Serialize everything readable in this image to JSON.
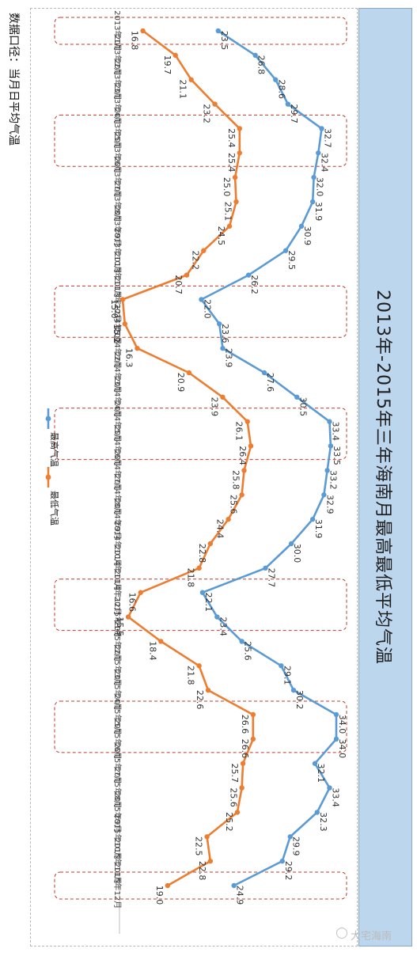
{
  "note": "数据口径：当月日平均气温",
  "watermark": "大宅海南",
  "chart_data": {
    "type": "line",
    "title": "2013年-2015年三年海南月最高最低平均气温",
    "xlabel": "",
    "ylabel": "",
    "categories": [
      "2013年1月",
      "2013年2月",
      "2013年3月",
      "2013年4月",
      "2013年5月",
      "2013年6月",
      "2013年7月",
      "2013年8月",
      "2013年9月",
      "2013年10月",
      "2013年11月",
      "2013年12月",
      "2014年1月",
      "2014年2月",
      "2014年3月",
      "2014年4月",
      "2014年5月",
      "2014年6月",
      "2014年7月",
      "2014年8月",
      "2014年9月",
      "2014年10月",
      "2014年11月",
      "2014年12月",
      "2015年1月",
      "2015年2月",
      "2015年3月",
      "2015年4月",
      "2015年5月",
      "2015年6月",
      "2015年7月",
      "2015年8月",
      "2015年9月",
      "2015年10月",
      "2015年11月",
      "2015年12月"
    ],
    "series": [
      {
        "name": "最高气温",
        "color": "#5b9bd5",
        "values": [
          23.5,
          26.8,
          28.6,
          29.7,
          32.7,
          32.4,
          32.0,
          31.9,
          30.9,
          29.5,
          26.2,
          22.0,
          23.6,
          23.9,
          27.6,
          30.5,
          33.4,
          33.5,
          33.2,
          32.9,
          31.9,
          30.0,
          27.7,
          22.1,
          23.4,
          25.6,
          29.1,
          30.2,
          34.0,
          34.0,
          32.1,
          33.4,
          32.3,
          29.9,
          29.2,
          24.9
        ]
      },
      {
        "name": "最低气温",
        "color": "#ed7d31",
        "values": [
          16.8,
          19.7,
          21.1,
          23.2,
          25.4,
          25.4,
          25.0,
          25.1,
          24.5,
          22.2,
          20.7,
          15.0,
          15.2,
          16.3,
          20.9,
          23.9,
          26.1,
          26.4,
          25.8,
          25.6,
          24.4,
          22.8,
          21.8,
          16.6,
          15.5,
          18.4,
          21.8,
          22.6,
          26.6,
          26.6,
          25.7,
          25.6,
          25.2,
          22.5,
          22.8,
          19.0
        ]
      }
    ],
    "highlight_months": [
      "2013年1月",
      "2013年5月",
      "2013年6月",
      "2013年12月",
      "2014年1月",
      "2014年5月",
      "2014年6月",
      "2014年12月",
      "2015年1月",
      "2015年5月",
      "2015年6月",
      "2015年12月"
    ],
    "legend_position": "left-middle",
    "grid": false
  }
}
